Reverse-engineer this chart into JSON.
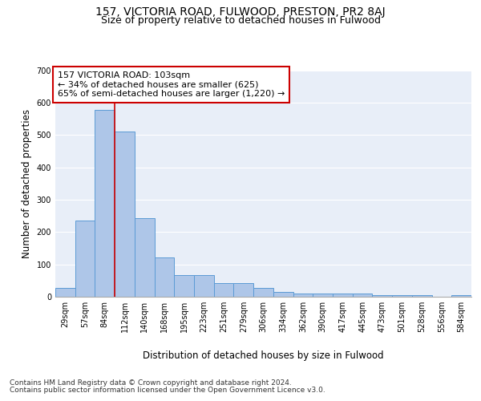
{
  "title": "157, VICTORIA ROAD, FULWOOD, PRESTON, PR2 8AJ",
  "subtitle": "Size of property relative to detached houses in Fulwood",
  "xlabel": "Distribution of detached houses by size in Fulwood",
  "ylabel": "Number of detached properties",
  "bar_color": "#aec6e8",
  "bar_edge_color": "#5b9bd5",
  "background_color": "#e8eef8",
  "grid_color": "#ffffff",
  "categories": [
    "29sqm",
    "57sqm",
    "84sqm",
    "112sqm",
    "140sqm",
    "168sqm",
    "195sqm",
    "223sqm",
    "251sqm",
    "279sqm",
    "306sqm",
    "334sqm",
    "362sqm",
    "390sqm",
    "417sqm",
    "445sqm",
    "473sqm",
    "501sqm",
    "528sqm",
    "556sqm",
    "584sqm"
  ],
  "values": [
    28,
    235,
    578,
    510,
    242,
    122,
    68,
    68,
    43,
    43,
    27,
    15,
    10,
    10,
    10,
    10,
    5,
    5,
    5,
    0,
    5
  ],
  "annotation_line_color": "#cc0000",
  "annotation_box_color": "#ffffff",
  "annotation_box_edge": "#cc0000",
  "annotation_text_line1": "157 VICTORIA ROAD: 103sqm",
  "annotation_text_line2": "← 34% of detached houses are smaller (625)",
  "annotation_text_line3": "65% of semi-detached houses are larger (1,220) →",
  "footnote1": "Contains HM Land Registry data © Crown copyright and database right 2024.",
  "footnote2": "Contains public sector information licensed under the Open Government Licence v3.0.",
  "ylim": [
    0,
    700
  ],
  "yticks": [
    0,
    100,
    200,
    300,
    400,
    500,
    600,
    700
  ],
  "title_fontsize": 10,
  "subtitle_fontsize": 9,
  "axis_label_fontsize": 8.5,
  "tick_fontsize": 7,
  "annotation_fontsize": 8,
  "footnote_fontsize": 6.5
}
